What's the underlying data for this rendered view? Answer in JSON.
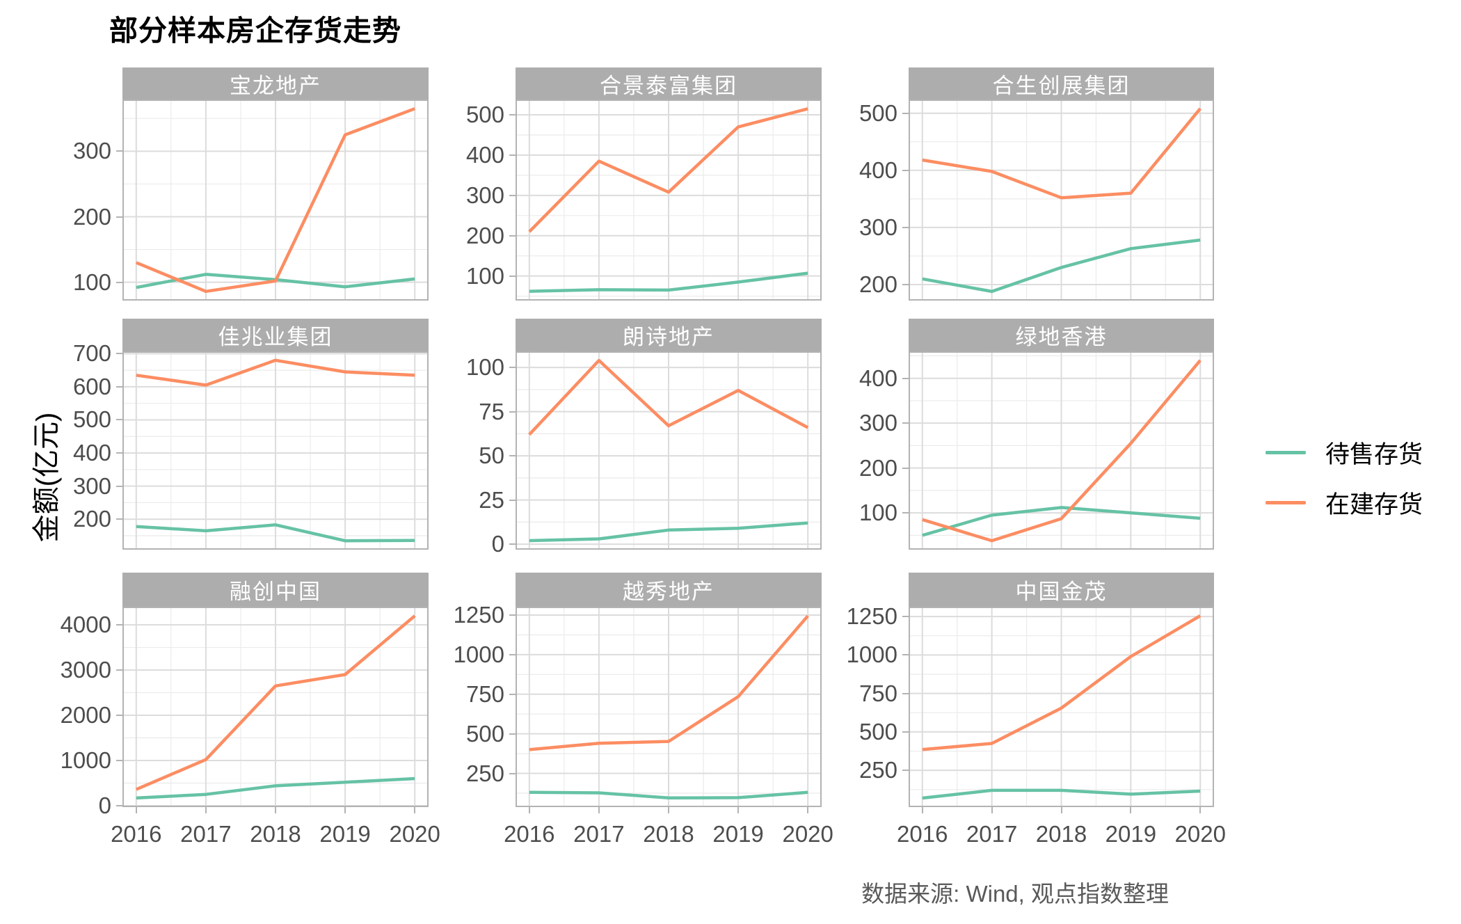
{
  "title": "部分样本房企存货走势",
  "y_axis_label": "金额(亿元)",
  "caption": "数据来源: Wind, 观点指数整理",
  "legend": {
    "position": "right",
    "items": [
      {
        "label": "待售存货",
        "color": "#66C2A5"
      },
      {
        "label": "在建存货",
        "color": "#FC8D62"
      }
    ]
  },
  "theme": {
    "strip_fill": "#ADADAD",
    "strip_text_color": "#FFFFFF",
    "panel_border": "#B3B3B3",
    "grid_major": "#DCDCDC",
    "grid_minor": "#EBEBEB",
    "tick_mark_color": "#B3B3B3",
    "tick_label_color": "#4D4D4D",
    "caption_color": "#595959"
  },
  "chart_data": {
    "type": "line",
    "facet_layout": "3x3",
    "x": [
      2016,
      2017,
      2018,
      2019,
      2020
    ],
    "x_tick_labels": [
      "2016",
      "2017",
      "2018",
      "2019",
      "2020"
    ],
    "series_names": [
      "待售存货",
      "在建存货"
    ],
    "grid": "major-and-minor",
    "legend_position": "right",
    "panels": [
      {
        "title": "宝龙地产",
        "y_ticks": [
          100,
          200,
          300
        ],
        "ylim": [
          72,
          379
        ],
        "series": [
          {
            "name": "待售存货",
            "values": [
              92,
              112,
              104,
              93,
              105
            ]
          },
          {
            "name": "在建存货",
            "values": [
              130,
              86,
              102,
              325,
              365
            ]
          }
        ]
      },
      {
        "title": "合景泰富集团",
        "y_ticks": [
          100,
          200,
          300,
          400,
          500
        ],
        "ylim": [
          39,
          538
        ],
        "series": [
          {
            "name": "待售存货",
            "values": [
              62,
              66,
              65,
              85,
              107
            ]
          },
          {
            "name": "在建存货",
            "values": [
              210,
              385,
              308,
              470,
              515
            ]
          }
        ]
      },
      {
        "title": "合生创展集团",
        "y_ticks": [
          200,
          300,
          400,
          500
        ],
        "ylim": [
          172,
          524
        ],
        "series": [
          {
            "name": "待售存货",
            "values": [
              210,
              188,
              230,
              263,
              278
            ]
          },
          {
            "name": "在建存货",
            "values": [
              418,
              398,
              352,
              360,
              508
            ]
          }
        ]
      },
      {
        "title": "佳兆业集团",
        "y_ticks": [
          200,
          300,
          400,
          500,
          600,
          700
        ],
        "ylim": [
          108,
          707
        ],
        "series": [
          {
            "name": "待售存货",
            "values": [
              178,
              165,
              183,
              135,
              136
            ]
          },
          {
            "name": "在建存货",
            "values": [
              635,
              605,
              680,
              645,
              635
            ]
          }
        ]
      },
      {
        "title": "朗诗地产",
        "y_ticks": [
          0,
          25,
          50,
          75,
          100
        ],
        "ylim": [
          -3.1,
          109.1
        ],
        "series": [
          {
            "name": "待售存货",
            "values": [
              2,
              3,
              8,
              9,
              12
            ]
          },
          {
            "name": "在建存货",
            "values": [
              62,
              104,
              67,
              87,
              66
            ]
          }
        ]
      },
      {
        "title": "绿地香港",
        "y_ticks": [
          100,
          200,
          300,
          400
        ],
        "ylim": [
          18,
          460
        ],
        "series": [
          {
            "name": "待售存货",
            "values": [
              50,
              95,
              112,
              100,
              88
            ]
          },
          {
            "name": "在建存货",
            "values": [
              85,
              38,
              87,
              255,
              440
            ]
          }
        ]
      },
      {
        "title": "融创中国",
        "y_ticks": [
          0,
          1000,
          2000,
          3000,
          4000
        ],
        "ylim": [
          -31,
          4401
        ],
        "series": [
          {
            "name": "待售存货",
            "values": [
              170,
              250,
              440,
              520,
              600
            ]
          },
          {
            "name": "在建存货",
            "values": [
              360,
              1020,
              2650,
              2900,
              4200
            ]
          }
        ]
      },
      {
        "title": "越秀地产",
        "y_ticks": [
          250,
          500,
          750,
          1000,
          1250
        ],
        "ylim": [
          37,
          1303
        ],
        "series": [
          {
            "name": "待售存货",
            "values": [
              130,
              127,
              95,
              97,
              130
            ]
          },
          {
            "name": "在建存货",
            "values": [
              400,
              440,
              452,
              735,
              1245
            ]
          }
        ]
      },
      {
        "title": "中国金茂",
        "y_ticks": [
          250,
          500,
          750,
          1000,
          1250
        ],
        "ylim": [
          11,
          1314
        ],
        "series": [
          {
            "name": "待售存货",
            "values": [
              70,
              120,
              120,
              95,
              115
            ]
          },
          {
            "name": "在建存货",
            "values": [
              385,
              425,
              655,
              990,
              1255
            ]
          }
        ]
      }
    ]
  }
}
